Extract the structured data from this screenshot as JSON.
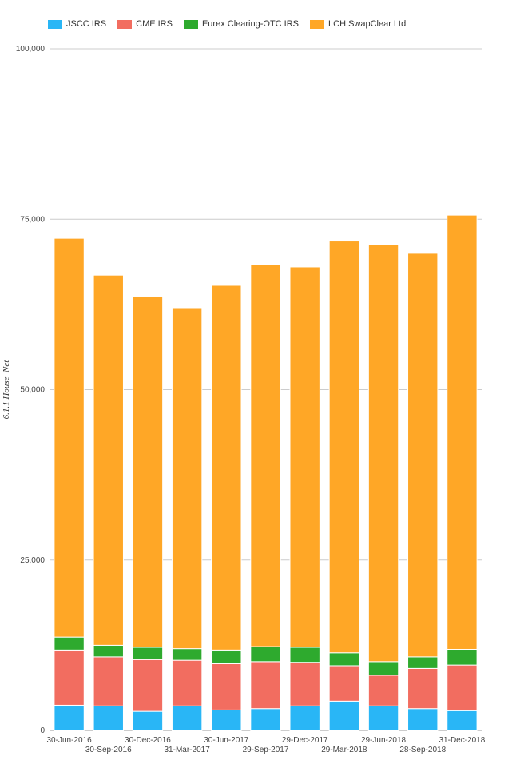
{
  "chart_data": {
    "type": "bar",
    "stacked": true,
    "title": "",
    "xlabel": "",
    "ylabel": "6.1.1 House_Net",
    "ylim": [
      0,
      100000
    ],
    "yticks": [
      "0",
      "25,000",
      "50,000",
      "75,000",
      "100,000"
    ],
    "grid": true,
    "legend_position": "top-left",
    "categories": [
      "30-Jun-2016",
      "30-Sep-2016",
      "30-Dec-2016",
      "31-Mar-2017",
      "30-Jun-2017",
      "29-Sep-2017",
      "29-Dec-2017",
      "29-Mar-2018",
      "29-Jun-2018",
      "28-Sep-2018",
      "31-Dec-2018"
    ],
    "series": [
      {
        "name": "JSCC IRS",
        "color": "#29b6f6",
        "values": [
          3700,
          3600,
          2800,
          3600,
          3000,
          3200,
          3600,
          4300,
          3600,
          3200,
          2900
        ]
      },
      {
        "name": "CME IRS",
        "color": "#f26d60",
        "values": [
          8100,
          7200,
          7600,
          6700,
          6800,
          6900,
          6400,
          5200,
          4500,
          5900,
          6700
        ]
      },
      {
        "name": "Eurex Clearing-OTC IRS",
        "color": "#2eaa2e",
        "values": [
          1900,
          1700,
          1800,
          1700,
          2000,
          2200,
          2200,
          1900,
          2000,
          1700,
          2300
        ]
      },
      {
        "name": "LCH SwapClear Ltd",
        "color": "#ffa726",
        "values": [
          58500,
          54300,
          51400,
          49900,
          53500,
          56000,
          55800,
          60400,
          61200,
          59200,
          63700
        ]
      }
    ]
  }
}
